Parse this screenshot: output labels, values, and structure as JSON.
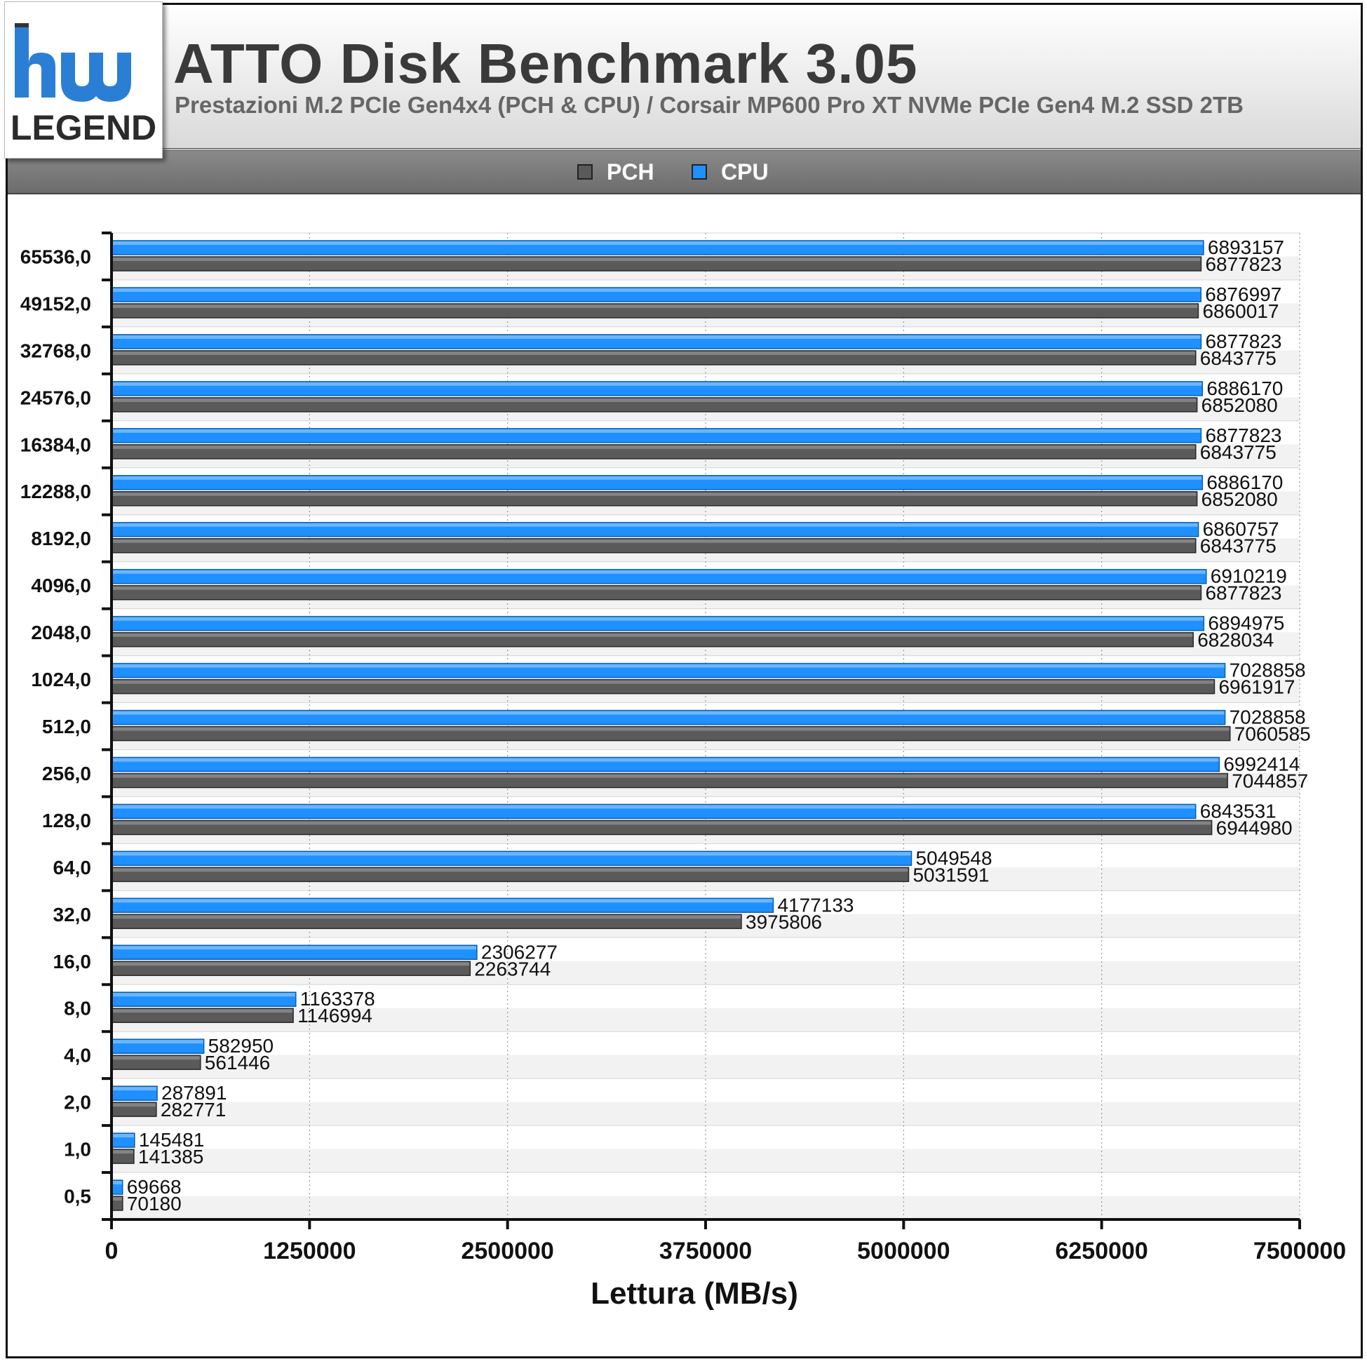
{
  "header": {
    "logo_text_top": "hw",
    "logo_text_bottom": "LEGEND",
    "title": "ATTO Disk Benchmark 3.05",
    "subtitle": "Prestazioni M.2 PCIe Gen4x4 (PCH & CPU) / Corsair MP600 Pro XT NVMe PCIe Gen4 M.2 SSD 2TB"
  },
  "legend": [
    {
      "label": "PCH",
      "color": "#5a5a5a"
    },
    {
      "label": "CPU",
      "color": "#1e90ff"
    }
  ],
  "chart_data": {
    "type": "bar",
    "orientation": "horizontal",
    "xlabel": "Lettura (MB/s)",
    "ylabel": "",
    "xlim": [
      0,
      7500000
    ],
    "xticks": [
      "0",
      "1250000",
      "2500000",
      "3750000",
      "5000000",
      "6250000",
      "7500000"
    ],
    "grid": true,
    "legend_position": "top",
    "categories": [
      "65536,0",
      "49152,0",
      "32768,0",
      "24576,0",
      "16384,0",
      "12288,0",
      "8192,0",
      "4096,0",
      "2048,0",
      "1024,0",
      "512,0",
      "256,0",
      "128,0",
      "64,0",
      "32,0",
      "16,0",
      "8,0",
      "4,0",
      "2,0",
      "1,0",
      "0,5"
    ],
    "series": [
      {
        "name": "CPU",
        "color": "#1e90ff",
        "values": [
          6893157,
          6876997,
          6877823,
          6886170,
          6877823,
          6886170,
          6860757,
          6910219,
          6894975,
          7028858,
          7028858,
          6992414,
          6843531,
          5049548,
          4177133,
          2306277,
          1163378,
          582950,
          287891,
          145481,
          69668
        ]
      },
      {
        "name": "PCH",
        "color": "#5a5a5a",
        "values": [
          6877823,
          6860017,
          6843775,
          6852080,
          6843775,
          6852080,
          6843775,
          6877823,
          6828034,
          6961917,
          7060585,
          7044857,
          6944980,
          5031591,
          3975806,
          2263744,
          1146994,
          561446,
          282771,
          141385,
          70180
        ]
      }
    ]
  }
}
